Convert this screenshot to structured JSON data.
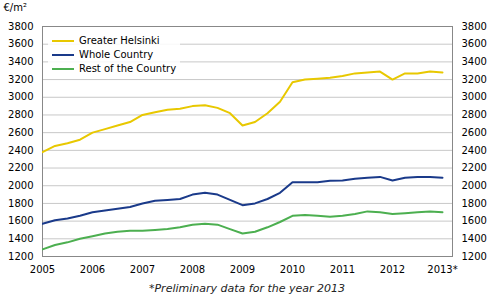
{
  "chart_data": {
    "type": "line",
    "subtitle": "*Preliminary data for the year 2013",
    "ylabel": "€/m²",
    "x": [
      2005.0,
      2005.25,
      2005.5,
      2005.75,
      2006.0,
      2006.25,
      2006.5,
      2006.75,
      2007.0,
      2007.25,
      2007.5,
      2007.75,
      2008.0,
      2008.25,
      2008.5,
      2008.75,
      2009.0,
      2009.25,
      2009.5,
      2009.75,
      2010.0,
      2010.25,
      2010.5,
      2010.75,
      2011.0,
      2011.25,
      2011.5,
      2011.75,
      2012.0,
      2012.25,
      2012.5,
      2012.75,
      2013.0
    ],
    "xlim": [
      2005,
      2013.2
    ],
    "xticks": [
      2005,
      2006,
      2007,
      2008,
      2009,
      2010,
      2011,
      2012,
      {
        "value": 2013,
        "label": "2013*"
      }
    ],
    "ylim": [
      1200,
      3800
    ],
    "yticks": [
      1200,
      1400,
      1600,
      1800,
      2000,
      2200,
      2400,
      2600,
      2800,
      3000,
      3200,
      3400,
      3600,
      3800
    ],
    "y2lim": [
      1200,
      3800
    ],
    "y2ticks": [
      1200,
      1400,
      1600,
      1800,
      2000,
      2200,
      2400,
      2600,
      2800,
      3000,
      3200,
      3400,
      3600,
      3800
    ],
    "grid": true,
    "legend": "upper left",
    "series": [
      {
        "name": "Greater Helsinki",
        "color": "#e8c800",
        "values": [
          2380,
          2450,
          2480,
          2520,
          2600,
          2640,
          2680,
          2720,
          2800,
          2830,
          2860,
          2870,
          2900,
          2910,
          2880,
          2820,
          2680,
          2720,
          2820,
          2950,
          3170,
          3200,
          3210,
          3220,
          3240,
          3270,
          3280,
          3290,
          3200,
          3270,
          3270,
          3290,
          3280
        ]
      },
      {
        "name": "Whole Country",
        "color": "#1a3a8a",
        "values": [
          1570,
          1610,
          1630,
          1660,
          1700,
          1720,
          1740,
          1760,
          1800,
          1830,
          1840,
          1850,
          1900,
          1920,
          1900,
          1840,
          1780,
          1800,
          1850,
          1920,
          2040,
          2040,
          2040,
          2055,
          2060,
          2080,
          2090,
          2100,
          2060,
          2090,
          2100,
          2100,
          2090
        ]
      },
      {
        "name": "Rest of the Country",
        "color": "#4caf50",
        "values": [
          1280,
          1330,
          1360,
          1400,
          1430,
          1460,
          1480,
          1490,
          1490,
          1500,
          1510,
          1530,
          1560,
          1570,
          1560,
          1510,
          1460,
          1480,
          1530,
          1590,
          1660,
          1670,
          1660,
          1650,
          1660,
          1680,
          1710,
          1700,
          1680,
          1690,
          1700,
          1710,
          1700
        ]
      }
    ]
  }
}
